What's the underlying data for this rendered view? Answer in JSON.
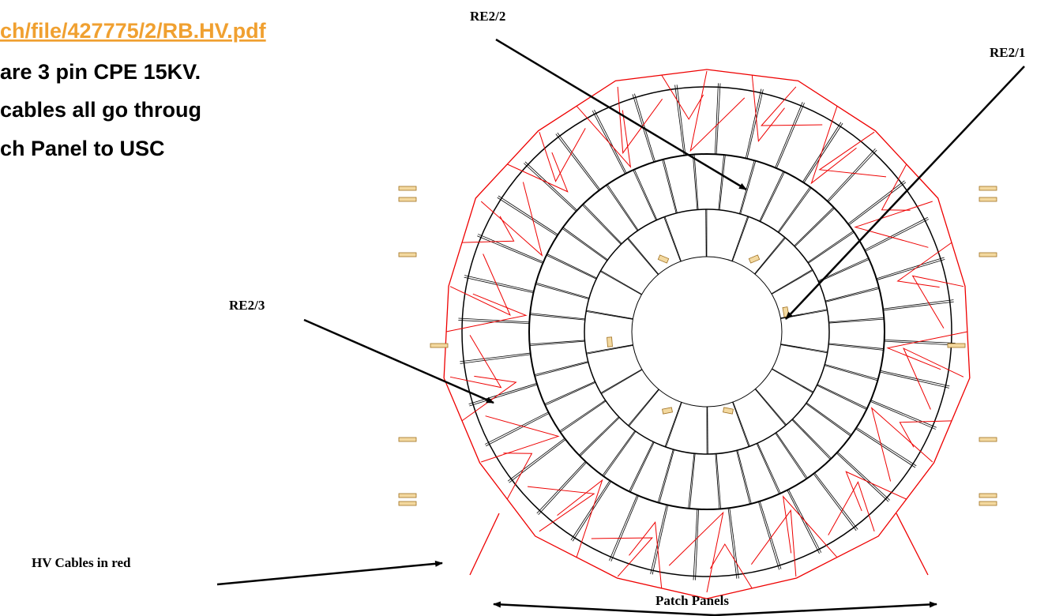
{
  "slide": {
    "text_lines": [
      "ch/file/427775/2/RB.HV.pdf",
      "are 3 pin CPE 15KV.",
      "cables all go throug",
      "ch Panel to USC"
    ],
    "labels": {
      "re22": "RE2/2",
      "re21": "RE2/1",
      "re23": "RE2/3",
      "hv": "HV Cables in red",
      "patch": "Patch Panels"
    }
  }
}
